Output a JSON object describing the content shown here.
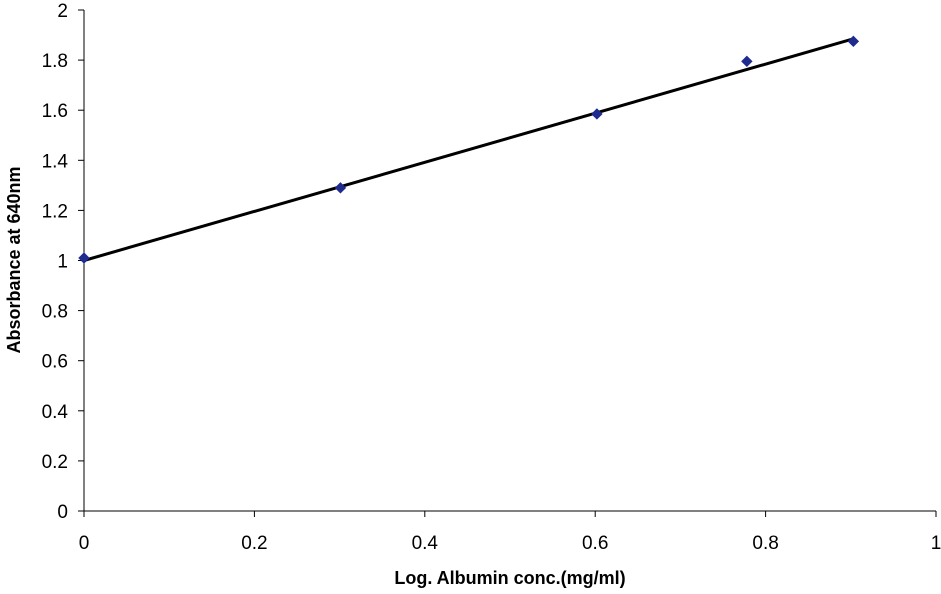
{
  "chart_data": {
    "type": "scatter",
    "title": "",
    "xlabel": "Log. Albumin conc.(mg/ml)",
    "ylabel": "Absorbance at 640nm",
    "xlim": [
      0,
      1
    ],
    "ylim": [
      0,
      2
    ],
    "x_ticks": [
      "0",
      "0.2",
      "0.4",
      "0.6",
      "0.8",
      "1"
    ],
    "y_ticks": [
      "0",
      "0.2",
      "0.4",
      "0.6",
      "0.8",
      "1",
      "1.2",
      "1.4",
      "1.6",
      "1.8",
      "2"
    ],
    "grid": false,
    "legend": "none",
    "marker": "diamond",
    "marker_color": "#1f2b8f",
    "line_color": "#000000",
    "series": [
      {
        "x": [
          0,
          0.301,
          0.602,
          0.778,
          0.903
        ],
        "y": [
          1.01,
          1.29,
          1.585,
          1.795,
          1.875
        ]
      }
    ],
    "trendline": {
      "type": "linear",
      "x": [
        0,
        0.903
      ],
      "y": [
        1.0,
        1.885
      ]
    }
  }
}
